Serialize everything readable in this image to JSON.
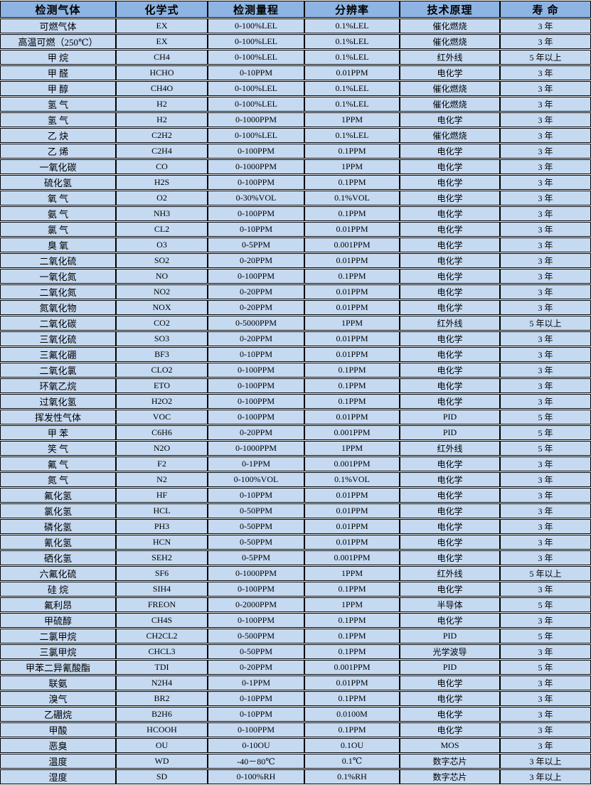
{
  "table": {
    "headers": [
      "检测气体",
      "化学式",
      "检测量程",
      "分辨率",
      "技术原理",
      "寿  命"
    ],
    "rows": [
      [
        "可燃气体",
        "EX",
        "0-100%LEL",
        "0.1%LEL",
        "催化燃烧",
        "3 年"
      ],
      [
        "高温可燃（250℃）",
        "EX",
        "0-100%LEL",
        "0.1%LEL",
        "催化燃烧",
        "3 年"
      ],
      [
        "甲 烷",
        "CH4",
        "0-100%LEL",
        "0.1%LEL",
        "红外线",
        "5 年以上"
      ],
      [
        "甲 醛",
        "HCHO",
        "0-10PPM",
        "0.01PPM",
        "电化学",
        "3 年"
      ],
      [
        "甲 醇",
        "CH4O",
        "0-100%LEL",
        "0.1%LEL",
        "催化燃烧",
        "3 年"
      ],
      [
        "氢 气",
        "H2",
        "0-100%LEL",
        "0.1%LEL",
        "催化燃烧",
        "3 年"
      ],
      [
        "氢 气",
        "H2",
        "0-1000PPM",
        "1PPM",
        "电化学",
        "3 年"
      ],
      [
        "乙 炔",
        "C2H2",
        "0-100%LEL",
        "0.1%LEL",
        "催化燃烧",
        "3 年"
      ],
      [
        "乙 烯",
        "C2H4",
        "0-100PPM",
        "0.1PPM",
        "电化学",
        "3 年"
      ],
      [
        "一氧化碳",
        "CO",
        "0-1000PPM",
        "1PPM",
        "电化学",
        "3 年"
      ],
      [
        "硫化氢",
        "H2S",
        "0-100PPM",
        "0.1PPM",
        "电化学",
        "3 年"
      ],
      [
        "氧 气",
        "O2",
        "0-30%VOL",
        "0.1%VOL",
        "电化学",
        "3 年"
      ],
      [
        "氨 气",
        "NH3",
        "0-100PPM",
        "0.1PPM",
        "电化学",
        "3 年"
      ],
      [
        "氯 气",
        "CL2",
        "0-10PPM",
        "0.01PPM",
        "电化学",
        "3 年"
      ],
      [
        "臭 氧",
        "O3",
        "0-5PPM",
        "0.001PPM",
        "电化学",
        "3 年"
      ],
      [
        "二氧化硫",
        "SO2",
        "0-20PPM",
        "0.01PPM",
        "电化学",
        "3 年"
      ],
      [
        "一氧化氮",
        "NO",
        "0-100PPM",
        "0.1PPM",
        "电化学",
        "3 年"
      ],
      [
        "二氧化氮",
        "NO2",
        "0-20PPM",
        "0.01PPM",
        "电化学",
        "3 年"
      ],
      [
        "氮氧化物",
        "NOX",
        "0-20PPM",
        "0.01PPM",
        "电化学",
        "3 年"
      ],
      [
        "二氧化碳",
        "CO2",
        "0-5000PPM",
        "1PPM",
        "红外线",
        "5 年以上"
      ],
      [
        "三氧化硫",
        "SO3",
        "0-20PPM",
        "0.01PPM",
        "电化学",
        "3 年"
      ],
      [
        "三氟化硼",
        "BF3",
        "0-10PPM",
        "0.01PPM",
        "电化学",
        "3 年"
      ],
      [
        "二氧化氯",
        "CLO2",
        "0-100PPM",
        "0.1PPM",
        "电化学",
        "3 年"
      ],
      [
        "环氧乙烷",
        "ETO",
        "0-100PPM",
        "0.1PPM",
        "电化学",
        "3 年"
      ],
      [
        "过氧化氢",
        "H2O2",
        "0-100PPM",
        "0.1PPM",
        "电化学",
        "3 年"
      ],
      [
        "挥发性气体",
        "VOC",
        "0-100PPM",
        "0.01PPM",
        "PID",
        "5 年"
      ],
      [
        "甲 苯",
        "C6H6",
        "0-20PPM",
        "0.001PPM",
        "PID",
        "5 年"
      ],
      [
        "笑 气",
        "N2O",
        "0-1000PPM",
        "1PPM",
        "红外线",
        "5 年"
      ],
      [
        "氟 气",
        "F2",
        "0-1PPM",
        "0.001PPM",
        "电化学",
        "3 年"
      ],
      [
        "氮 气",
        "N2",
        "0-100%VOL",
        "0.1%VOL",
        "电化学",
        "3 年"
      ],
      [
        "氟化氢",
        "HF",
        "0-10PPM",
        "0.01PPM",
        "电化学",
        "3 年"
      ],
      [
        "氯化氢",
        "HCL",
        "0-50PPM",
        "0.01PPM",
        "电化学",
        "3 年"
      ],
      [
        "磷化氢",
        "PH3",
        "0-50PPM",
        "0.01PPM",
        "电化学",
        "3 年"
      ],
      [
        "氰化氢",
        "HCN",
        "0-50PPM",
        "0.01PPM",
        "电化学",
        "3 年"
      ],
      [
        "硒化氢",
        "SEH2",
        "0-5PPM",
        "0.001PPM",
        "电化学",
        "3 年"
      ],
      [
        "六氟化硫",
        "SF6",
        "0-1000PPM",
        "1PPM",
        "红外线",
        "5 年以上"
      ],
      [
        "硅 烷",
        "SIH4",
        "0-100PPM",
        "0.1PPM",
        "电化学",
        "3 年"
      ],
      [
        "氟利昂",
        "FREON",
        "0-2000PPM",
        "1PPM",
        "半导体",
        "5 年"
      ],
      [
        "甲硫醇",
        "CH4S",
        "0-100PPM",
        "0.1PPM",
        "电化学",
        "3 年"
      ],
      [
        "二氯甲烷",
        "CH2CL2",
        "0-500PPM",
        "0.1PPM",
        "PID",
        "5 年"
      ],
      [
        "三氯甲烷",
        "CHCL3",
        "0-50PPM",
        "0.1PPM",
        "光学波导",
        "3 年"
      ],
      [
        "甲苯二异氰酸酯",
        "TDI",
        "0-20PPM",
        "0.001PPM",
        "PID",
        "5 年"
      ],
      [
        "联氨",
        "N2H4",
        "0-1PPM",
        "0.01PPM",
        "电化学",
        "3 年"
      ],
      [
        "溴气",
        "BR2",
        "0-10PPM",
        "0.1PPM",
        "电化学",
        "3 年"
      ],
      [
        "乙硼烷",
        "B2H6",
        "0-10PPM",
        "0.0100M",
        "电化学",
        "3 年"
      ],
      [
        "甲酸",
        "HCOOH",
        "0-100PPM",
        "0.1PPM",
        "电化学",
        "3 年"
      ],
      [
        "恶臭",
        "OU",
        "0-10OU",
        "0.1OU",
        "MOS",
        "3 年"
      ],
      [
        "温度",
        "WD",
        "-40－80℃",
        "0.1℃",
        "数字芯片",
        "3 年以上"
      ],
      [
        "湿度",
        "SD",
        "0-100%RH",
        "0.1%RH",
        "数字芯片",
        "3 年以上"
      ]
    ],
    "colors": {
      "header_bg": "#8db4e2",
      "row_bg": "#c5d9f1",
      "border": "#000000",
      "gap": "#ffffff",
      "text": "#000000"
    }
  }
}
